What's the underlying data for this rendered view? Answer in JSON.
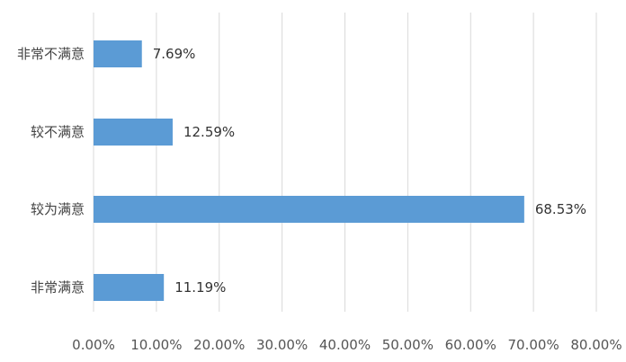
{
  "chart_data": {
    "type": "bar",
    "orientation": "horizontal",
    "categories": [
      "非常不满意",
      "较不满意",
      "较为满意",
      "非常满意"
    ],
    "values": [
      7.69,
      12.59,
      68.53,
      11.19
    ],
    "value_labels": [
      "7.69%",
      "12.59%",
      "68.53%",
      "11.19%"
    ],
    "x_ticks": [
      "0.00%",
      "10.00%",
      "20.00%",
      "30.00%",
      "40.00%",
      "50.00%",
      "60.00%",
      "70.00%",
      "80.00%"
    ],
    "xlim": [
      0,
      80
    ],
    "grid": true,
    "legend": "none",
    "bar_color": "#5b9bd5",
    "grid_color": "#d9d9d9",
    "title": "",
    "xlabel": "",
    "ylabel": ""
  }
}
